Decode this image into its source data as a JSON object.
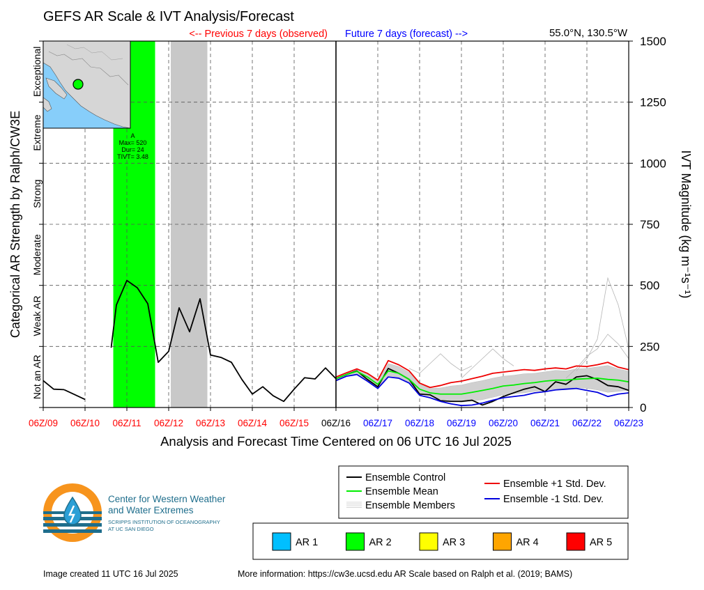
{
  "chart_data": {
    "type": "line",
    "title": "GEFS AR Scale & IVT Analysis/Forecast",
    "location": "55.0°N, 130.5°W",
    "observed_label": "<-- Previous 7 days (observed)",
    "forecast_label": "Future 7 days (forecast) -->",
    "xlabel": "Analysis and Forecast Time Centered on 06 UTC 16 Jul 2025",
    "ylabel_right": "IVT Magnitude (kg m⁻¹s⁻¹)",
    "ylabel_left": "Categorical AR Strength by Ralph/CW3E",
    "xlim": [
      0,
      14
    ],
    "ylim": [
      0,
      1500
    ],
    "x_ticks": [
      0,
      1,
      2,
      3,
      4,
      5,
      6,
      7,
      8,
      9,
      10,
      11,
      12,
      13,
      14
    ],
    "x_tick_labels": [
      "06Z/09",
      "06Z/10",
      "06Z/11",
      "06Z/12",
      "06Z/13",
      "06Z/14",
      "06Z/15",
      "06Z/16",
      "06Z/17",
      "06Z/18",
      "06Z/19",
      "06Z/20",
      "06Z/21",
      "06Z/22",
      "06Z/23"
    ],
    "x_tick_colors": [
      "#ff0000",
      "#ff0000",
      "#ff0000",
      "#ff0000",
      "#ff0000",
      "#ff0000",
      "#ff0000",
      "#000000",
      "#0000ff",
      "#0000ff",
      "#0000ff",
      "#0000ff",
      "#0000ff",
      "#0000ff",
      "#0000ff"
    ],
    "y_ticks": [
      0,
      250,
      500,
      750,
      1000,
      1250,
      1500
    ],
    "y_tick_labels": [
      "0",
      "250",
      "500",
      "750",
      "1000",
      "1250",
      "1500"
    ],
    "categories": [
      {
        "label": "Not an AR",
        "from": 0,
        "to": 250
      },
      {
        "label": "Weak AR",
        "from": 250,
        "to": 500
      },
      {
        "label": "Moderate",
        "from": 500,
        "to": 750
      },
      {
        "label": "Strong",
        "from": 750,
        "to": 1000
      },
      {
        "label": "Extreme",
        "from": 1000,
        "to": 1250
      },
      {
        "label": "Exceptional",
        "from": 1250,
        "to": 1500
      }
    ],
    "grid": true,
    "ar_events": [
      {
        "x_start": 1.675,
        "x_end": 2.675,
        "color": "#00ff00",
        "label": [
          "A",
          "Max= 520",
          "Dur= 24",
          "TIVT= 3.48"
        ]
      },
      {
        "x_start": 3.05,
        "x_end": 3.925,
        "color": "#c8c8c8"
      }
    ],
    "series": [
      {
        "name": "Ensemble Control (observed)",
        "color": "#000000",
        "x": [
          0,
          0.25,
          0.5
        ],
        "y": [
          110,
          75,
          73
        ]
      },
      {
        "name": "Ensemble Control (observed)",
        "color": "#000000",
        "x": [
          0.5,
          0.75,
          1.0
        ],
        "y": [
          73,
          53,
          33
        ]
      },
      {
        "name": "Ensemble Control (observed)",
        "color": "#000000",
        "x": [
          1.625,
          1.75,
          2.0,
          2.25,
          2.5,
          2.75,
          3.0,
          3.25,
          3.5,
          3.75,
          4.0,
          4.25,
          4.5,
          4.75,
          5.0,
          5.25,
          5.5,
          5.75,
          6.0,
          6.25,
          6.5,
          6.75,
          7.0
        ],
        "y": [
          245,
          420,
          520,
          490,
          425,
          185,
          230,
          408,
          310,
          445,
          215,
          205,
          185,
          115,
          55,
          85,
          48,
          25,
          75,
          122,
          117,
          162,
          118
        ]
      },
      {
        "name": "Ensemble Control",
        "color": "#000000",
        "x": [
          7.0,
          7.25,
          7.5,
          7.75,
          8.0,
          8.25,
          8.5,
          8.75,
          9.0,
          9.25,
          9.5,
          9.75,
          10.0,
          10.25,
          10.5,
          10.75,
          11.0,
          11.25,
          11.5,
          11.75,
          12.0,
          12.25,
          12.5,
          12.75,
          13.0,
          13.25,
          13.5,
          13.75,
          14.0
        ],
        "y": [
          118,
          135,
          150,
          115,
          85,
          160,
          140,
          115,
          55,
          52,
          28,
          25,
          25,
          30,
          10,
          25,
          45,
          60,
          75,
          85,
          65,
          105,
          95,
          125,
          130,
          115,
          90,
          85,
          70
        ]
      },
      {
        "name": "Ensemble Mean",
        "color": "#00ee00",
        "x": [
          7.0,
          7.25,
          7.5,
          7.75,
          8.0,
          8.25,
          8.5,
          8.75,
          9.0,
          9.25,
          9.5,
          9.75,
          10.0,
          10.25,
          10.5,
          10.75,
          11.0,
          11.25,
          11.5,
          11.75,
          12.0,
          12.25,
          12.5,
          12.75,
          13.0,
          13.25,
          13.5,
          13.75,
          14.0
        ],
        "y": [
          118,
          135,
          148,
          125,
          95,
          150,
          140,
          115,
          75,
          60,
          55,
          55,
          55,
          62,
          70,
          78,
          88,
          92,
          98,
          102,
          108,
          112,
          112,
          116,
          118,
          120,
          115,
          112,
          105
        ]
      },
      {
        "name": "Ensemble +1 Std. Dev.",
        "color": "#ee0000",
        "x": [
          7.0,
          7.25,
          7.5,
          7.75,
          8.0,
          8.25,
          8.5,
          8.75,
          9.0,
          9.25,
          9.5,
          9.75,
          10.0,
          10.25,
          10.5,
          10.75,
          11.0,
          11.25,
          11.5,
          11.75,
          12.0,
          12.25,
          12.5,
          12.75,
          13.0,
          13.25,
          13.5,
          13.75,
          14.0
        ],
        "y": [
          125,
          142,
          158,
          140,
          112,
          192,
          175,
          150,
          100,
          82,
          90,
          102,
          108,
          118,
          128,
          140,
          145,
          150,
          155,
          152,
          158,
          162,
          158,
          170,
          168,
          175,
          185,
          165,
          155
        ]
      },
      {
        "name": "Ensemble -1 Std. Dev.",
        "color": "#0000dd",
        "x": [
          7.0,
          7.25,
          7.5,
          7.75,
          8.0,
          8.25,
          8.5,
          8.75,
          9.0,
          9.25,
          9.5,
          9.75,
          10.0,
          10.25,
          10.5,
          10.75,
          11.0,
          11.25,
          11.5,
          11.75,
          12.0,
          12.25,
          12.5,
          12.75,
          13.0,
          13.25,
          13.5,
          13.75,
          14.0
        ],
        "y": [
          110,
          128,
          135,
          108,
          78,
          125,
          120,
          100,
          50,
          40,
          25,
          15,
          8,
          10,
          18,
          30,
          40,
          45,
          50,
          60,
          65,
          72,
          75,
          78,
          70,
          62,
          45,
          55,
          60
        ]
      }
    ],
    "member_shading": {
      "color": "#d0d0d0",
      "x": [
        7.0,
        7.25,
        7.5,
        7.75,
        8.0,
        8.25,
        8.5,
        8.75,
        9.0,
        9.25,
        9.5,
        9.75,
        10.0,
        10.25,
        10.5,
        10.75,
        11.0,
        11.25,
        11.5,
        11.75,
        12.0,
        12.25,
        12.5,
        12.75,
        13.0,
        13.25,
        13.5,
        13.75,
        14.0
      ],
      "low": [
        112,
        130,
        138,
        112,
        82,
        130,
        124,
        104,
        56,
        46,
        34,
        28,
        22,
        26,
        32,
        42,
        52,
        56,
        60,
        66,
        70,
        76,
        78,
        82,
        78,
        72,
        62,
        66,
        70
      ],
      "high": [
        124,
        140,
        156,
        136,
        108,
        180,
        168,
        144,
        96,
        78,
        80,
        88,
        92,
        102,
        110,
        120,
        128,
        132,
        138,
        140,
        146,
        152,
        150,
        158,
        160,
        166,
        172,
        158,
        148
      ]
    },
    "member_spikes": [
      {
        "x": [
          12.75,
          13.0,
          13.25,
          13.5,
          13.75,
          14.0
        ],
        "y": [
          150,
          200,
          280,
          530,
          420,
          240
        ]
      },
      {
        "x": [
          12.5,
          12.75,
          13.0,
          13.25,
          13.5,
          13.75,
          14.0
        ],
        "y": [
          120,
          160,
          210,
          240,
          300,
          260,
          200
        ]
      },
      {
        "x": [
          10.0,
          10.25,
          10.5,
          10.75,
          11.0,
          11.25
        ],
        "y": [
          120,
          160,
          200,
          240,
          200,
          170
        ]
      },
      {
        "x": [
          8.75,
          9.0,
          9.25,
          9.5,
          9.75,
          10.0,
          10.25
        ],
        "y": [
          160,
          140,
          180,
          220,
          180,
          150,
          170
        ]
      }
    ],
    "legend_lines": [
      {
        "label": "Ensemble Control",
        "color": "#000000"
      },
      {
        "label": "Ensemble Mean",
        "color": "#00ee00"
      },
      {
        "label": "Ensemble Members",
        "color": "#b0b0b0"
      },
      {
        "label": "Ensemble +1 Std. Dev.",
        "color": "#ee0000"
      },
      {
        "label": "Ensemble -1 Std. Dev.",
        "color": "#0000dd"
      }
    ],
    "legend_ar": [
      {
        "label": "AR 1",
        "color": "#00bfff"
      },
      {
        "label": "AR 2",
        "color": "#00ff00"
      },
      {
        "label": "AR 3",
        "color": "#ffff00"
      },
      {
        "label": "AR 4",
        "color": "#ffa500"
      },
      {
        "label": "AR 5",
        "color": "#ff0000"
      }
    ]
  },
  "logo": {
    "line1": "Center for Western Weather",
    "line2": "and Water Extremes",
    "line3": "SCRIPPS INSTITUTION OF OCEANOGRAPHY",
    "line4": "AT UC SAN DIEGO",
    "orange": "#f7941d",
    "teal": "#1f6e8c"
  },
  "footer": {
    "created": "Image created 11 UTC 16 Jul 2025",
    "more_info": "More information: https://cw3e.ucsd.edu AR Scale based on Ralph et al. (2019; BAMS)"
  }
}
